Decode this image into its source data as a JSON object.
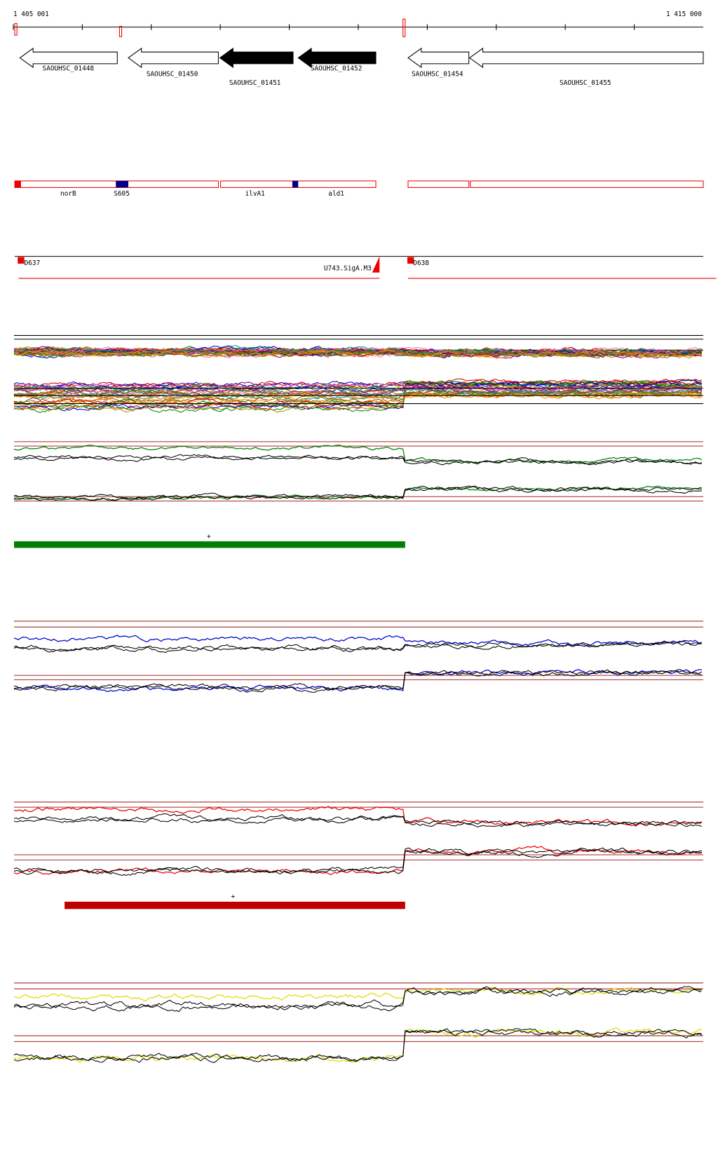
{
  "ruler": {
    "start": "1 405 001",
    "end": "1 415 000"
  },
  "genes": [
    "SAOUHSC_01448",
    "SAOUHSC_01450",
    "SAOUHSC_01451",
    "SAOUHSC_01452",
    "SAOUHSC_01454",
    "SAOUHSC_01455"
  ],
  "features": [
    "norB",
    "S605",
    "ilvA1",
    "ald1"
  ],
  "regions": [
    "D637",
    "U743.SigA.M3",
    "D638"
  ],
  "markers": [
    "+",
    "+"
  ]
}
